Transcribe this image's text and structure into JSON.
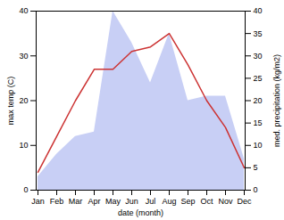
{
  "chart_data": {
    "type": "line",
    "categories": [
      "Jan",
      "Feb",
      "Mar",
      "Apr",
      "May",
      "Jun",
      "Jul",
      "Aug",
      "Sep",
      "Oct",
      "Nov",
      "Dec"
    ],
    "series": [
      {
        "type": "area",
        "color": "#c8cff5",
        "axis": "y2",
        "values": [
          3,
          8,
          12,
          13,
          40,
          33,
          24,
          35,
          20,
          21,
          21,
          7
        ]
      },
      {
        "type": "line",
        "color": "#cc3333",
        "values": [
          4,
          12,
          20,
          27,
          27,
          31,
          32,
          35,
          28,
          20,
          14,
          5
        ]
      }
    ],
    "xlabel": "date (month)",
    "ylabel": "max temp (C)",
    "y2label": "med. precipitation (kg/m2)",
    "ylim": [
      0,
      40
    ],
    "yticks": [
      0,
      10,
      20,
      30,
      40
    ],
    "y2lim": [
      0,
      40
    ],
    "y2ticks": [
      0,
      5,
      10,
      15,
      20,
      25,
      30,
      35,
      40
    ],
    "grid": false
  }
}
